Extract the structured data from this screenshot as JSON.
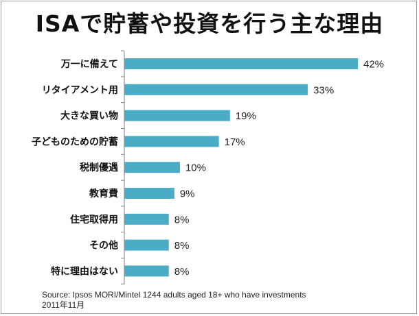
{
  "title": "ISAで貯蓄や投資を行う主な理由",
  "source_line1": "Source: Ipsos MORI/Mintel 1244 adults aged 18+ who have investments",
  "source_line2": "2011年11月",
  "colors": {
    "bar": "#4bacc6",
    "axis": "#7f7f7f",
    "text": "#111111"
  },
  "chart_data": {
    "type": "bar",
    "orientation": "horizontal",
    "categories": [
      "万一に備えて",
      "リタイアメント用",
      "大きな買い物",
      "子どものための貯蓄",
      "税制優遇",
      "教育費",
      "住宅取得用",
      "その他",
      "特に理由はない"
    ],
    "values": [
      42,
      33,
      19,
      17,
      10,
      9,
      8,
      8,
      8
    ],
    "value_labels": [
      "42%",
      "33%",
      "19%",
      "17%",
      "10%",
      "9%",
      "8%",
      "8%",
      "8%"
    ],
    "xlim": [
      0,
      42
    ],
    "grid": false,
    "legend": "none"
  }
}
